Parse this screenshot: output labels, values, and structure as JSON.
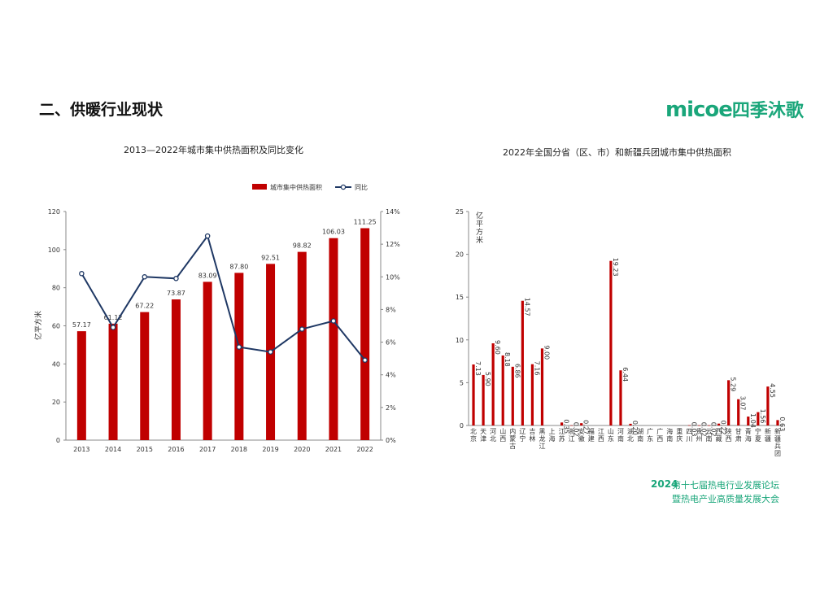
{
  "page": {
    "section_title": "二、供暖行业现状",
    "logo_text": "micoe",
    "logo_cn": "四季沐歌",
    "forum_year": "2024",
    "forum_line1": "第十七届热电行业发展论坛",
    "forum_line2": "暨热电产业高质量发展大会"
  },
  "colors": {
    "bar": "#c00000",
    "line": "#1f3864",
    "brand": "#1aa67a"
  },
  "chart_data": [
    {
      "type": "bar",
      "title": "2013—2022年城市集中供热面积及同比变化",
      "categories": [
        "2013",
        "2014",
        "2015",
        "2016",
        "2017",
        "2018",
        "2019",
        "2020",
        "2021",
        "2022"
      ],
      "series": [
        {
          "name": "城市集中供热面积",
          "type": "bar",
          "axis": "left",
          "values": [
            57.17,
            61.12,
            67.22,
            73.87,
            83.09,
            87.8,
            92.51,
            98.82,
            106.03,
            111.25
          ],
          "labels": [
            "57.17",
            "61.12",
            "67.22",
            "73.87",
            "83.09",
            "87.80",
            "92.51",
            "98.82",
            "106.03",
            "111.25"
          ]
        },
        {
          "name": "同比",
          "type": "line",
          "axis": "right",
          "values": [
            10.2,
            6.9,
            10.0,
            9.9,
            12.5,
            5.7,
            5.4,
            6.8,
            7.3,
            4.9
          ]
        }
      ],
      "ylabel": "亿平方米",
      "ylim": [
        0,
        120
      ],
      "yticks": [
        0,
        20,
        40,
        60,
        80,
        100,
        120
      ],
      "y2lim": [
        0,
        14
      ],
      "y2ticks": [
        "0%",
        "2%",
        "4%",
        "6%",
        "8%",
        "10%",
        "12%",
        "14%"
      ],
      "legend": "top-right",
      "grid": false
    },
    {
      "type": "bar",
      "title": "2022年全国分省（区、市）和新疆兵团城市集中供热面积",
      "ylabel": "亿平方米",
      "ylim": [
        0,
        25
      ],
      "yticks": [
        0,
        5,
        10,
        15,
        20,
        25
      ],
      "categories": [
        "北京",
        "天津",
        "河北",
        "山西",
        "内蒙古",
        "辽宁",
        "吉林",
        "黑龙江",
        "上海",
        "江苏",
        "浙江",
        "安徽",
        "福建",
        "江西",
        "山东",
        "河南",
        "湖北",
        "湖南",
        "广东",
        "广西",
        "海南",
        "重庆",
        "四川",
        "贵州",
        "云南",
        "西藏",
        "陕西",
        "甘肃",
        "青海",
        "宁夏",
        "新疆",
        "新疆兵团"
      ],
      "values": [
        7.13,
        5.9,
        9.6,
        8.18,
        6.86,
        14.57,
        7.16,
        9.0,
        null,
        0.35,
        0.02,
        0.27,
        null,
        null,
        19.23,
        6.44,
        0.2,
        null,
        null,
        null,
        null,
        null,
        0.03,
        0.02,
        0.02,
        0.22,
        5.29,
        3.07,
        1.04,
        1.56,
        4.55,
        0.63
      ],
      "labels": [
        "7.13",
        "5.90",
        "9.60",
        "8.18",
        "6.86",
        "14.57",
        "7.16",
        "9.00",
        "",
        "0.35",
        "0.02",
        "0.27",
        "",
        "",
        "19.23",
        "6.44",
        "0.20",
        "",
        "",
        "",
        "",
        "",
        "0.03",
        "0.02",
        "0.02",
        "0.22",
        "5.29",
        "3.07",
        "1.04",
        "1.56",
        "4.55",
        "0.63"
      ],
      "grid": false
    }
  ]
}
